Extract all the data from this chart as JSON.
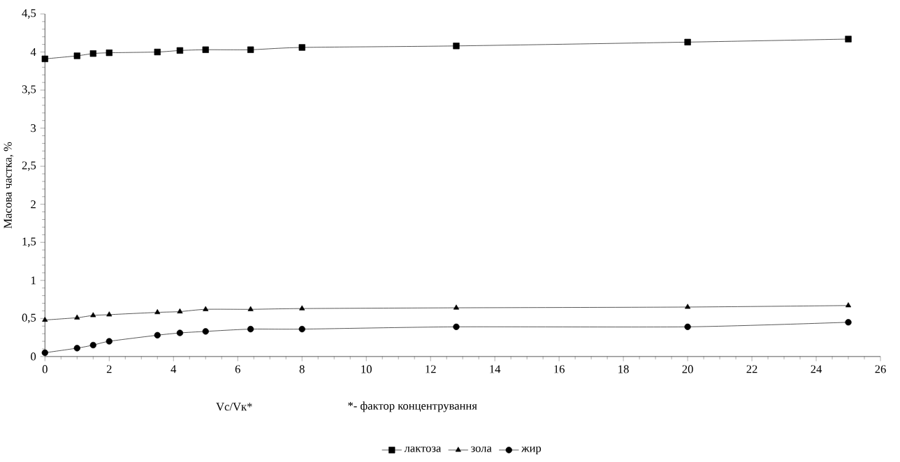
{
  "chart_data": {
    "type": "line",
    "ylabel": "Масова частка, %",
    "xlabel": "Vc/Vк*",
    "annotations": [
      "*- фактор концентрування"
    ],
    "x": [
      0,
      1,
      1.5,
      2,
      3.5,
      4.2,
      5,
      6.4,
      8,
      12.8,
      20,
      25
    ],
    "series": [
      {
        "name": "лактоза",
        "color": "#000000",
        "marker": "square",
        "values": [
          3.91,
          3.95,
          3.98,
          3.99,
          4.0,
          4.02,
          4.03,
          4.03,
          4.06,
          4.08,
          4.13,
          4.17
        ]
      },
      {
        "name": "зола",
        "color": "#000000",
        "marker": "triangle",
        "values": [
          0.48,
          0.51,
          0.54,
          0.55,
          0.58,
          0.59,
          0.62,
          0.62,
          0.63,
          0.64,
          0.65,
          0.67
        ]
      },
      {
        "name": "жир",
        "color": "#000000",
        "marker": "circle",
        "values": [
          0.05,
          0.11,
          0.15,
          0.2,
          0.28,
          0.31,
          0.33,
          0.36,
          0.36,
          0.39,
          0.39,
          0.45
        ]
      }
    ],
    "xlim": [
      0,
      26
    ],
    "xticks": [
      0,
      2,
      4,
      6,
      8,
      10,
      12,
      14,
      16,
      18,
      20,
      22,
      24,
      26
    ],
    "ylim": [
      0,
      4.5
    ],
    "yticks": [
      0,
      {
        "value": 0.5,
        "label": "0,5"
      },
      1,
      {
        "value": 1.5,
        "label": "1,5"
      },
      2,
      {
        "value": 2.5,
        "label": "2,5"
      },
      3,
      {
        "value": 3.5,
        "label": "3,5"
      },
      4,
      {
        "value": 4.5,
        "label": "4,5"
      }
    ],
    "grid": false,
    "legend": "bottom",
    "line_style": "solid"
  }
}
